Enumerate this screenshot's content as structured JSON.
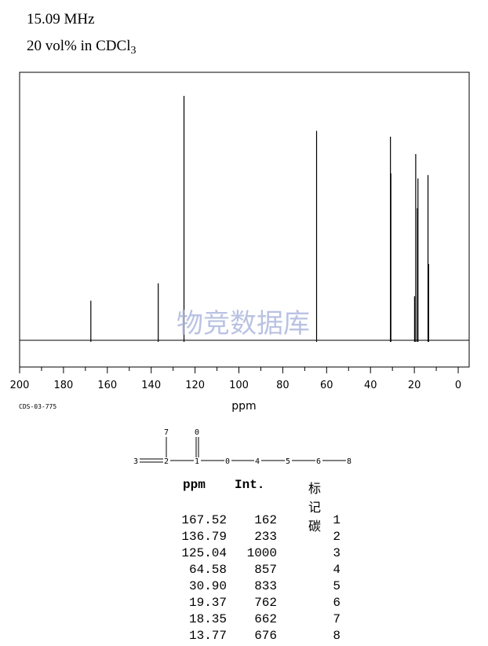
{
  "header": {
    "frequency": "15.09 MHz",
    "solvent_prefix": "20 vol% in CDCl",
    "solvent_subscript": "3"
  },
  "watermark": "物竞数据库",
  "sample_code": "CDS-03-775",
  "chart_data": {
    "type": "line",
    "xlabel": "ppm",
    "ylabel": "",
    "xlim": [
      200,
      -5
    ],
    "x_reversed": true,
    "x_ticks": [
      200,
      180,
      160,
      140,
      120,
      100,
      80,
      60,
      40,
      20,
      0
    ],
    "peaks": [
      {
        "ppm": 167.52,
        "intensity": 162
      },
      {
        "ppm": 136.79,
        "intensity": 233
      },
      {
        "ppm": 125.04,
        "intensity": 1000
      },
      {
        "ppm": 64.58,
        "intensity": 857
      },
      {
        "ppm": 30.9,
        "intensity": 833
      },
      {
        "ppm": 30.7,
        "intensity": 683
      },
      {
        "ppm": 19.37,
        "intensity": 762
      },
      {
        "ppm": 19.9,
        "intensity": 180
      },
      {
        "ppm": 18.35,
        "intensity": 662
      },
      {
        "ppm": 18.6,
        "intensity": 540
      },
      {
        "ppm": 13.77,
        "intensity": 676
      },
      {
        "ppm": 13.5,
        "intensity": 312
      }
    ]
  },
  "structure": {
    "labels": [
      "7",
      "0",
      "3",
      "2",
      "1",
      "0",
      "4",
      "5",
      "6",
      "8"
    ]
  },
  "peak_table": {
    "headers": {
      "ppm": "ppm",
      "int": "Int.",
      "assign": "标记碳"
    },
    "rows": [
      {
        "ppm": "167.52",
        "int": "162",
        "assign": "1"
      },
      {
        "ppm": "136.79",
        "int": "233",
        "assign": "2"
      },
      {
        "ppm": "125.04",
        "int": "1000",
        "assign": "3"
      },
      {
        "ppm": "64.58",
        "int": "857",
        "assign": "4"
      },
      {
        "ppm": "30.90",
        "int": "833",
        "assign": "5"
      },
      {
        "ppm": "19.37",
        "int": "762",
        "assign": "6"
      },
      {
        "ppm": "18.35",
        "int": "662",
        "assign": "7"
      },
      {
        "ppm": "13.77",
        "int": "676",
        "assign": "8"
      }
    ]
  }
}
